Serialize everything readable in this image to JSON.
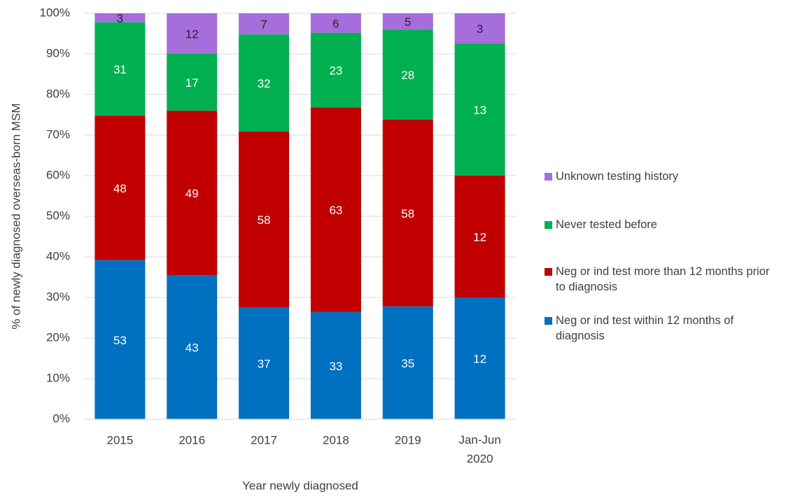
{
  "chart_data": {
    "type": "stacked-bar-100",
    "x_label": "Year newly diagnosed",
    "y_label": "% of newly diagnosed overseas-born MSM",
    "categories": [
      "2015",
      "2016",
      "2017",
      "2018",
      "2019",
      "Jan-Jun 2020"
    ],
    "ylim": [
      0,
      100
    ],
    "yticks": [
      {
        "value": 0,
        "label": "0%"
      },
      {
        "value": 10,
        "label": "10%"
      },
      {
        "value": 20,
        "label": "20%"
      },
      {
        "value": 30,
        "label": "30%"
      },
      {
        "value": 40,
        "label": "40%"
      },
      {
        "value": 50,
        "label": "50%"
      },
      {
        "value": 60,
        "label": "60%"
      },
      {
        "value": 70,
        "label": "70%"
      },
      {
        "value": 80,
        "label": "80%"
      },
      {
        "value": 90,
        "label": "90%"
      },
      {
        "value": 100,
        "label": "100%"
      }
    ],
    "grid": true,
    "legend_position": "right",
    "series": [
      {
        "name": "Neg or ind test within 12 months of diagnosis",
        "color": "#0070c0",
        "values": [
          39.2,
          35.5,
          27.6,
          26.4,
          27.8,
          30.0
        ],
        "counts": [
          53,
          43,
          37,
          33,
          35,
          12
        ]
      },
      {
        "name": "Neg or ind test more than 12 months prior to diagnosis",
        "color": "#c00000",
        "values": [
          35.6,
          40.5,
          43.3,
          50.4,
          46.0,
          30.0
        ],
        "counts": [
          48,
          49,
          58,
          63,
          58,
          12
        ]
      },
      {
        "name": "Never tested before",
        "color": "#00b050",
        "values": [
          23.0,
          14.0,
          23.9,
          18.4,
          22.2,
          32.5
        ],
        "counts": [
          31,
          17,
          32,
          23,
          28,
          13
        ]
      },
      {
        "name": "Unknown testing history",
        "color": "#a66ddb",
        "values": [
          2.2,
          10.0,
          5.2,
          4.8,
          4.0,
          7.5
        ],
        "counts": [
          3,
          12,
          7,
          6,
          5,
          3
        ]
      }
    ]
  }
}
